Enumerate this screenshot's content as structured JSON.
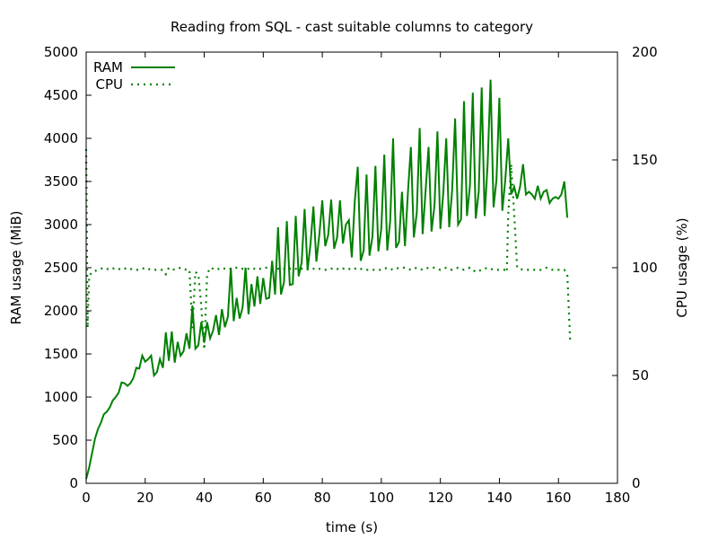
{
  "chart_data": {
    "type": "line",
    "title": "Reading from SQL - cast suitable columns to category",
    "xlabel": "time (s)",
    "ylabel": "RAM usage (MiB)",
    "y2label": "CPU usage (%)",
    "xlim": [
      0,
      180
    ],
    "ylim": [
      0,
      5000
    ],
    "y2lim": [
      0,
      200
    ],
    "xticks": [
      0,
      20,
      40,
      60,
      80,
      100,
      120,
      140,
      160,
      180
    ],
    "yticks": [
      0,
      500,
      1000,
      1500,
      2000,
      2500,
      3000,
      3500,
      4000,
      4500,
      5000
    ],
    "y2ticks": [
      0,
      50,
      100,
      150,
      200
    ],
    "grid": false,
    "legend_position": "top-left",
    "colors": {
      "series": "#008000",
      "axis": "#000000"
    },
    "series": [
      {
        "name": "RAM",
        "axis": "left",
        "style": "solid",
        "points": [
          [
            0,
            50
          ],
          [
            1,
            180
          ],
          [
            2,
            350
          ],
          [
            3,
            520
          ],
          [
            4,
            630
          ],
          [
            5,
            700
          ],
          [
            6,
            800
          ],
          [
            7,
            830
          ],
          [
            8,
            880
          ],
          [
            9,
            960
          ],
          [
            10,
            1000
          ],
          [
            11,
            1050
          ],
          [
            12,
            1170
          ],
          [
            13,
            1160
          ],
          [
            14,
            1130
          ],
          [
            15,
            1160
          ],
          [
            16,
            1220
          ],
          [
            17,
            1340
          ],
          [
            18,
            1330
          ],
          [
            19,
            1480
          ],
          [
            20,
            1410
          ],
          [
            21,
            1440
          ],
          [
            22,
            1480
          ],
          [
            23,
            1250
          ],
          [
            24,
            1290
          ],
          [
            25,
            1440
          ],
          [
            26,
            1340
          ],
          [
            27,
            1750
          ],
          [
            28,
            1420
          ],
          [
            29,
            1760
          ],
          [
            30,
            1400
          ],
          [
            31,
            1640
          ],
          [
            32,
            1480
          ],
          [
            33,
            1530
          ],
          [
            34,
            1740
          ],
          [
            35,
            1560
          ],
          [
            36,
            2060
          ],
          [
            37,
            1560
          ],
          [
            38,
            1600
          ],
          [
            39,
            1870
          ],
          [
            40,
            1630
          ],
          [
            41,
            1870
          ],
          [
            42,
            1680
          ],
          [
            43,
            1770
          ],
          [
            44,
            1950
          ],
          [
            45,
            1720
          ],
          [
            46,
            2020
          ],
          [
            47,
            1810
          ],
          [
            48,
            1930
          ],
          [
            49,
            2500
          ],
          [
            50,
            1880
          ],
          [
            51,
            2150
          ],
          [
            52,
            1910
          ],
          [
            53,
            2040
          ],
          [
            54,
            2500
          ],
          [
            55,
            1960
          ],
          [
            56,
            2310
          ],
          [
            57,
            2050
          ],
          [
            58,
            2400
          ],
          [
            59,
            2080
          ],
          [
            60,
            2380
          ],
          [
            61,
            2140
          ],
          [
            62,
            2150
          ],
          [
            63,
            2580
          ],
          [
            64,
            2190
          ],
          [
            65,
            2970
          ],
          [
            66,
            2190
          ],
          [
            67,
            2330
          ],
          [
            68,
            3040
          ],
          [
            69,
            2300
          ],
          [
            70,
            2310
          ],
          [
            71,
            3100
          ],
          [
            72,
            2400
          ],
          [
            73,
            2560
          ],
          [
            74,
            3180
          ],
          [
            75,
            2470
          ],
          [
            76,
            2780
          ],
          [
            77,
            3210
          ],
          [
            78,
            2570
          ],
          [
            79,
            2880
          ],
          [
            80,
            3280
          ],
          [
            81,
            2750
          ],
          [
            82,
            2880
          ],
          [
            83,
            3290
          ],
          [
            84,
            2720
          ],
          [
            85,
            2850
          ],
          [
            86,
            3280
          ],
          [
            87,
            2780
          ],
          [
            88,
            3000
          ],
          [
            89,
            3050
          ],
          [
            90,
            2620
          ],
          [
            91,
            3270
          ],
          [
            92,
            3670
          ],
          [
            93,
            2580
          ],
          [
            94,
            2700
          ],
          [
            95,
            3580
          ],
          [
            96,
            2640
          ],
          [
            97,
            2860
          ],
          [
            98,
            3680
          ],
          [
            99,
            2690
          ],
          [
            100,
            2960
          ],
          [
            101,
            3810
          ],
          [
            102,
            2700
          ],
          [
            103,
            3050
          ],
          [
            104,
            4000
          ],
          [
            105,
            2730
          ],
          [
            106,
            2800
          ],
          [
            107,
            3380
          ],
          [
            108,
            2750
          ],
          [
            109,
            3370
          ],
          [
            110,
            3900
          ],
          [
            111,
            2850
          ],
          [
            112,
            3140
          ],
          [
            113,
            4120
          ],
          [
            114,
            2890
          ],
          [
            115,
            3390
          ],
          [
            116,
            3900
          ],
          [
            117,
            2920
          ],
          [
            118,
            3220
          ],
          [
            119,
            4080
          ],
          [
            120,
            2950
          ],
          [
            121,
            3380
          ],
          [
            122,
            4000
          ],
          [
            123,
            2970
          ],
          [
            124,
            3400
          ],
          [
            125,
            4230
          ],
          [
            126,
            3000
          ],
          [
            127,
            3060
          ],
          [
            128,
            4430
          ],
          [
            129,
            3100
          ],
          [
            130,
            3450
          ],
          [
            131,
            4530
          ],
          [
            132,
            3070
          ],
          [
            133,
            3380
          ],
          [
            134,
            4590
          ],
          [
            135,
            3100
          ],
          [
            136,
            3700
          ],
          [
            137,
            4680
          ],
          [
            138,
            3200
          ],
          [
            139,
            3520
          ],
          [
            140,
            4470
          ],
          [
            141,
            3160
          ],
          [
            142,
            3520
          ],
          [
            143,
            4000
          ],
          [
            144,
            3350
          ],
          [
            145,
            3440
          ],
          [
            146,
            3300
          ],
          [
            147,
            3440
          ],
          [
            148,
            3700
          ],
          [
            149,
            3350
          ],
          [
            150,
            3380
          ],
          [
            151,
            3350
          ],
          [
            152,
            3300
          ],
          [
            153,
            3450
          ],
          [
            154,
            3300
          ],
          [
            155,
            3380
          ],
          [
            156,
            3400
          ],
          [
            157,
            3250
          ],
          [
            158,
            3300
          ],
          [
            159,
            3320
          ],
          [
            160,
            3300
          ],
          [
            161,
            3350
          ],
          [
            162,
            3500
          ],
          [
            163,
            3080
          ]
        ]
      },
      {
        "name": "CPU",
        "axis": "right",
        "style": "dotted",
        "points": [
          [
            0,
            155
          ],
          [
            0.5,
            72
          ],
          [
            1,
            96
          ],
          [
            2,
            98
          ],
          [
            4,
            99
          ],
          [
            6,
            100
          ],
          [
            8,
            99
          ],
          [
            10,
            100
          ],
          [
            12,
            99
          ],
          [
            14,
            100
          ],
          [
            16,
            99
          ],
          [
            18,
            99
          ],
          [
            20,
            100
          ],
          [
            22,
            99
          ],
          [
            24,
            99
          ],
          [
            26,
            99
          ],
          [
            27,
            97
          ],
          [
            28,
            100
          ],
          [
            30,
            99
          ],
          [
            32,
            100
          ],
          [
            34,
            99
          ],
          [
            35,
            99
          ],
          [
            36,
            72
          ],
          [
            37,
            98
          ],
          [
            38,
            97
          ],
          [
            39,
            82
          ],
          [
            40,
            62
          ],
          [
            41,
            97
          ],
          [
            42,
            100
          ],
          [
            44,
            99
          ],
          [
            46,
            100
          ],
          [
            48,
            99
          ],
          [
            50,
            100
          ],
          [
            52,
            100
          ],
          [
            54,
            99
          ],
          [
            56,
            100
          ],
          [
            58,
            99
          ],
          [
            60,
            100
          ],
          [
            62,
            100
          ],
          [
            64,
            99
          ],
          [
            66,
            100
          ],
          [
            68,
            99
          ],
          [
            70,
            100
          ],
          [
            72,
            99
          ],
          [
            74,
            100
          ],
          [
            76,
            99
          ],
          [
            78,
            100
          ],
          [
            80,
            99
          ],
          [
            82,
            99
          ],
          [
            84,
            100
          ],
          [
            86,
            99
          ],
          [
            88,
            100
          ],
          [
            90,
            99
          ],
          [
            92,
            100
          ],
          [
            94,
            99
          ],
          [
            96,
            99
          ],
          [
            98,
            99
          ],
          [
            100,
            99
          ],
          [
            102,
            100
          ],
          [
            104,
            99
          ],
          [
            106,
            100
          ],
          [
            108,
            100
          ],
          [
            110,
            99
          ],
          [
            112,
            100
          ],
          [
            114,
            99
          ],
          [
            116,
            100
          ],
          [
            118,
            100
          ],
          [
            120,
            99
          ],
          [
            122,
            100
          ],
          [
            124,
            99
          ],
          [
            126,
            100
          ],
          [
            128,
            99
          ],
          [
            130,
            100
          ],
          [
            132,
            98
          ],
          [
            134,
            99
          ],
          [
            136,
            100
          ],
          [
            138,
            99
          ],
          [
            140,
            99
          ],
          [
            142,
            99
          ],
          [
            142.5,
            98
          ],
          [
            143,
            125
          ],
          [
            144,
            148
          ],
          [
            145,
            125
          ],
          [
            146,
            100
          ],
          [
            148,
            99
          ],
          [
            150,
            99
          ],
          [
            152,
            99
          ],
          [
            154,
            99
          ],
          [
            156,
            100
          ],
          [
            158,
            99
          ],
          [
            160,
            99
          ],
          [
            162,
            99
          ],
          [
            163,
            97
          ],
          [
            164,
            65
          ]
        ]
      }
    ]
  }
}
